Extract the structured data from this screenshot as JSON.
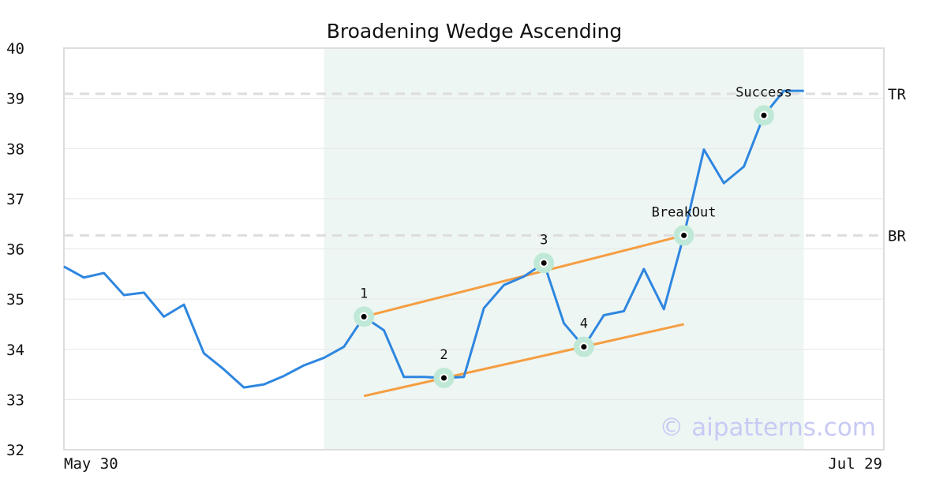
{
  "chart_data": {
    "type": "line",
    "title": "Broadening Wedge Ascending",
    "xlabel": "",
    "ylabel": "",
    "ylim": [
      32,
      40
    ],
    "yticks": [
      32,
      33,
      34,
      35,
      36,
      37,
      38,
      39,
      40
    ],
    "xlim": [
      0,
      41
    ],
    "x_start_label": "May 30",
    "x_end_label": "Jul 29",
    "grid": true,
    "series": [
      {
        "values": [
          35.65,
          35.43,
          35.52,
          35.08,
          35.13,
          34.65,
          34.89,
          33.92,
          33.6,
          33.24,
          33.3,
          33.47,
          33.68,
          33.83,
          34.05,
          34.65,
          34.38,
          33.45,
          33.45,
          33.43,
          33.45,
          34.82,
          35.28,
          35.45,
          35.72,
          34.52,
          34.05,
          34.68,
          34.76,
          35.6,
          34.8,
          36.27,
          37.98,
          37.31,
          37.64,
          38.66,
          39.15,
          39.15
        ],
        "color": "#2e86e0"
      }
    ],
    "trendlines": [
      {
        "name": "upper",
        "x1": 15,
        "y1": 34.65,
        "x2": 31,
        "y2": 36.27,
        "color": "#f59e42"
      },
      {
        "name": "lower",
        "x1": 15,
        "y1": 33.07,
        "x2": 31,
        "y2": 34.5,
        "color": "#f59e42"
      }
    ],
    "pattern_region": {
      "x_start": 13,
      "x_end": 37,
      "color": "#eef6f3"
    },
    "points": [
      {
        "label": "1",
        "x": 15,
        "y": 34.65
      },
      {
        "label": "2",
        "x": 19,
        "y": 33.43
      },
      {
        "label": "3",
        "x": 24,
        "y": 35.72
      },
      {
        "label": "4",
        "x": 26,
        "y": 34.05
      },
      {
        "label": "BreakOut",
        "x": 31,
        "y": 36.27
      },
      {
        "label": "Success",
        "x": 35,
        "y": 38.66
      }
    ],
    "reference_lines": [
      {
        "label": "TR",
        "y": 39.09
      },
      {
        "label": "BR",
        "y": 36.27
      }
    ],
    "watermark": "© aipatterns.com",
    "colors": {
      "line": "#2e86e0",
      "trend": "#f59e42",
      "marker_halo": "#bfe9d6",
      "reference": "#dddddd",
      "grid": "#e6e6e6",
      "frame": "#dddddd"
    }
  }
}
